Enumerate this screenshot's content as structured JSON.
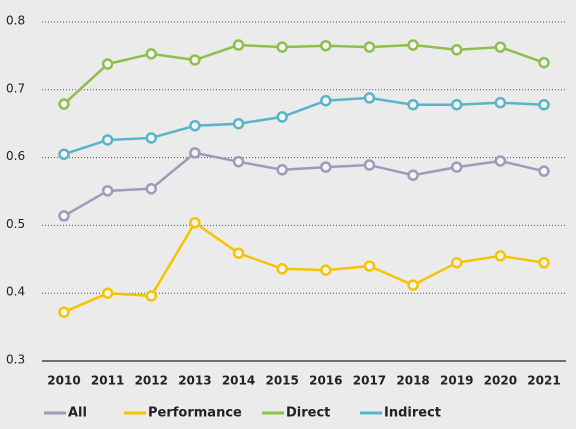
{
  "chart_data": {
    "type": "line",
    "categories": [
      "2010",
      "2011",
      "2012",
      "2013",
      "2014",
      "2015",
      "2016",
      "2017",
      "2018",
      "2019",
      "2020",
      "2021"
    ],
    "series": [
      {
        "name": "All",
        "color": "#9a9cb8",
        "values": [
          0.514,
          0.551,
          0.554,
          0.607,
          0.594,
          0.582,
          0.586,
          0.589,
          0.574,
          0.586,
          0.595,
          0.58
        ]
      },
      {
        "name": "Performance",
        "color": "#f5c400",
        "values": [
          0.372,
          0.4,
          0.396,
          0.504,
          0.459,
          0.436,
          0.434,
          0.44,
          0.412,
          0.445,
          0.455,
          0.445
        ]
      },
      {
        "name": "Direct",
        "color": "#8cc04a",
        "values": [
          0.679,
          0.738,
          0.753,
          0.744,
          0.766,
          0.763,
          0.765,
          0.763,
          0.766,
          0.759,
          0.763,
          0.74
        ]
      },
      {
        "name": "Indirect",
        "color": "#5ab4c8",
        "values": [
          0.605,
          0.626,
          0.629,
          0.647,
          0.65,
          0.66,
          0.684,
          0.688,
          0.678,
          0.678,
          0.681,
          0.678
        ]
      }
    ],
    "ylim": [
      0.3,
      0.8
    ],
    "yticks": [
      0.3,
      0.4,
      0.5,
      0.6,
      0.7,
      0.8
    ],
    "grid": true
  }
}
